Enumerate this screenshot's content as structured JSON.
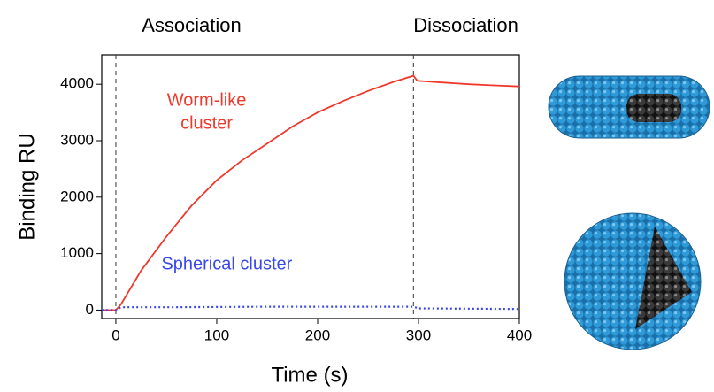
{
  "chart_data": {
    "type": "line",
    "xlabel": "Time (s)",
    "ylabel": "Binding RU",
    "phase_labels": [
      {
        "text": "Association",
        "x": 75
      },
      {
        "text": "Dissociation",
        "x": 347
      }
    ],
    "vlines": [
      0,
      295
    ],
    "xlim": [
      -14,
      400
    ],
    "xticks": [
      0,
      100,
      200,
      300,
      400
    ],
    "ylim": [
      -150,
      4520
    ],
    "yticks": [
      0,
      1000,
      2000,
      3000,
      4000
    ],
    "series": [
      {
        "label_lines": [
          "Worm-like",
          "cluster"
        ],
        "label_at": [
          90,
          3700
        ],
        "color": "#f0382c",
        "style": "solid",
        "x": [
          -14,
          0,
          5,
          25,
          50,
          75,
          100,
          125,
          150,
          175,
          200,
          225,
          250,
          275,
          295,
          298,
          300,
          325,
          350,
          375,
          400
        ],
        "values": [
          0,
          0,
          100,
          700,
          1300,
          1850,
          2300,
          2650,
          2950,
          3250,
          3500,
          3700,
          3880,
          4040,
          4150,
          4080,
          4060,
          4030,
          4000,
          3980,
          3960
        ]
      },
      {
        "label_lines": [
          "Spherical cluster"
        ],
        "label_at": [
          110,
          800
        ],
        "color": "#3848ee",
        "style": "dotted",
        "x": [
          -14,
          0,
          5,
          50,
          100,
          150,
          200,
          250,
          295,
          300,
          350,
          400
        ],
        "values": [
          0,
          0,
          50,
          50,
          55,
          60,
          60,
          60,
          60,
          30,
          25,
          20
        ]
      }
    ]
  }
}
